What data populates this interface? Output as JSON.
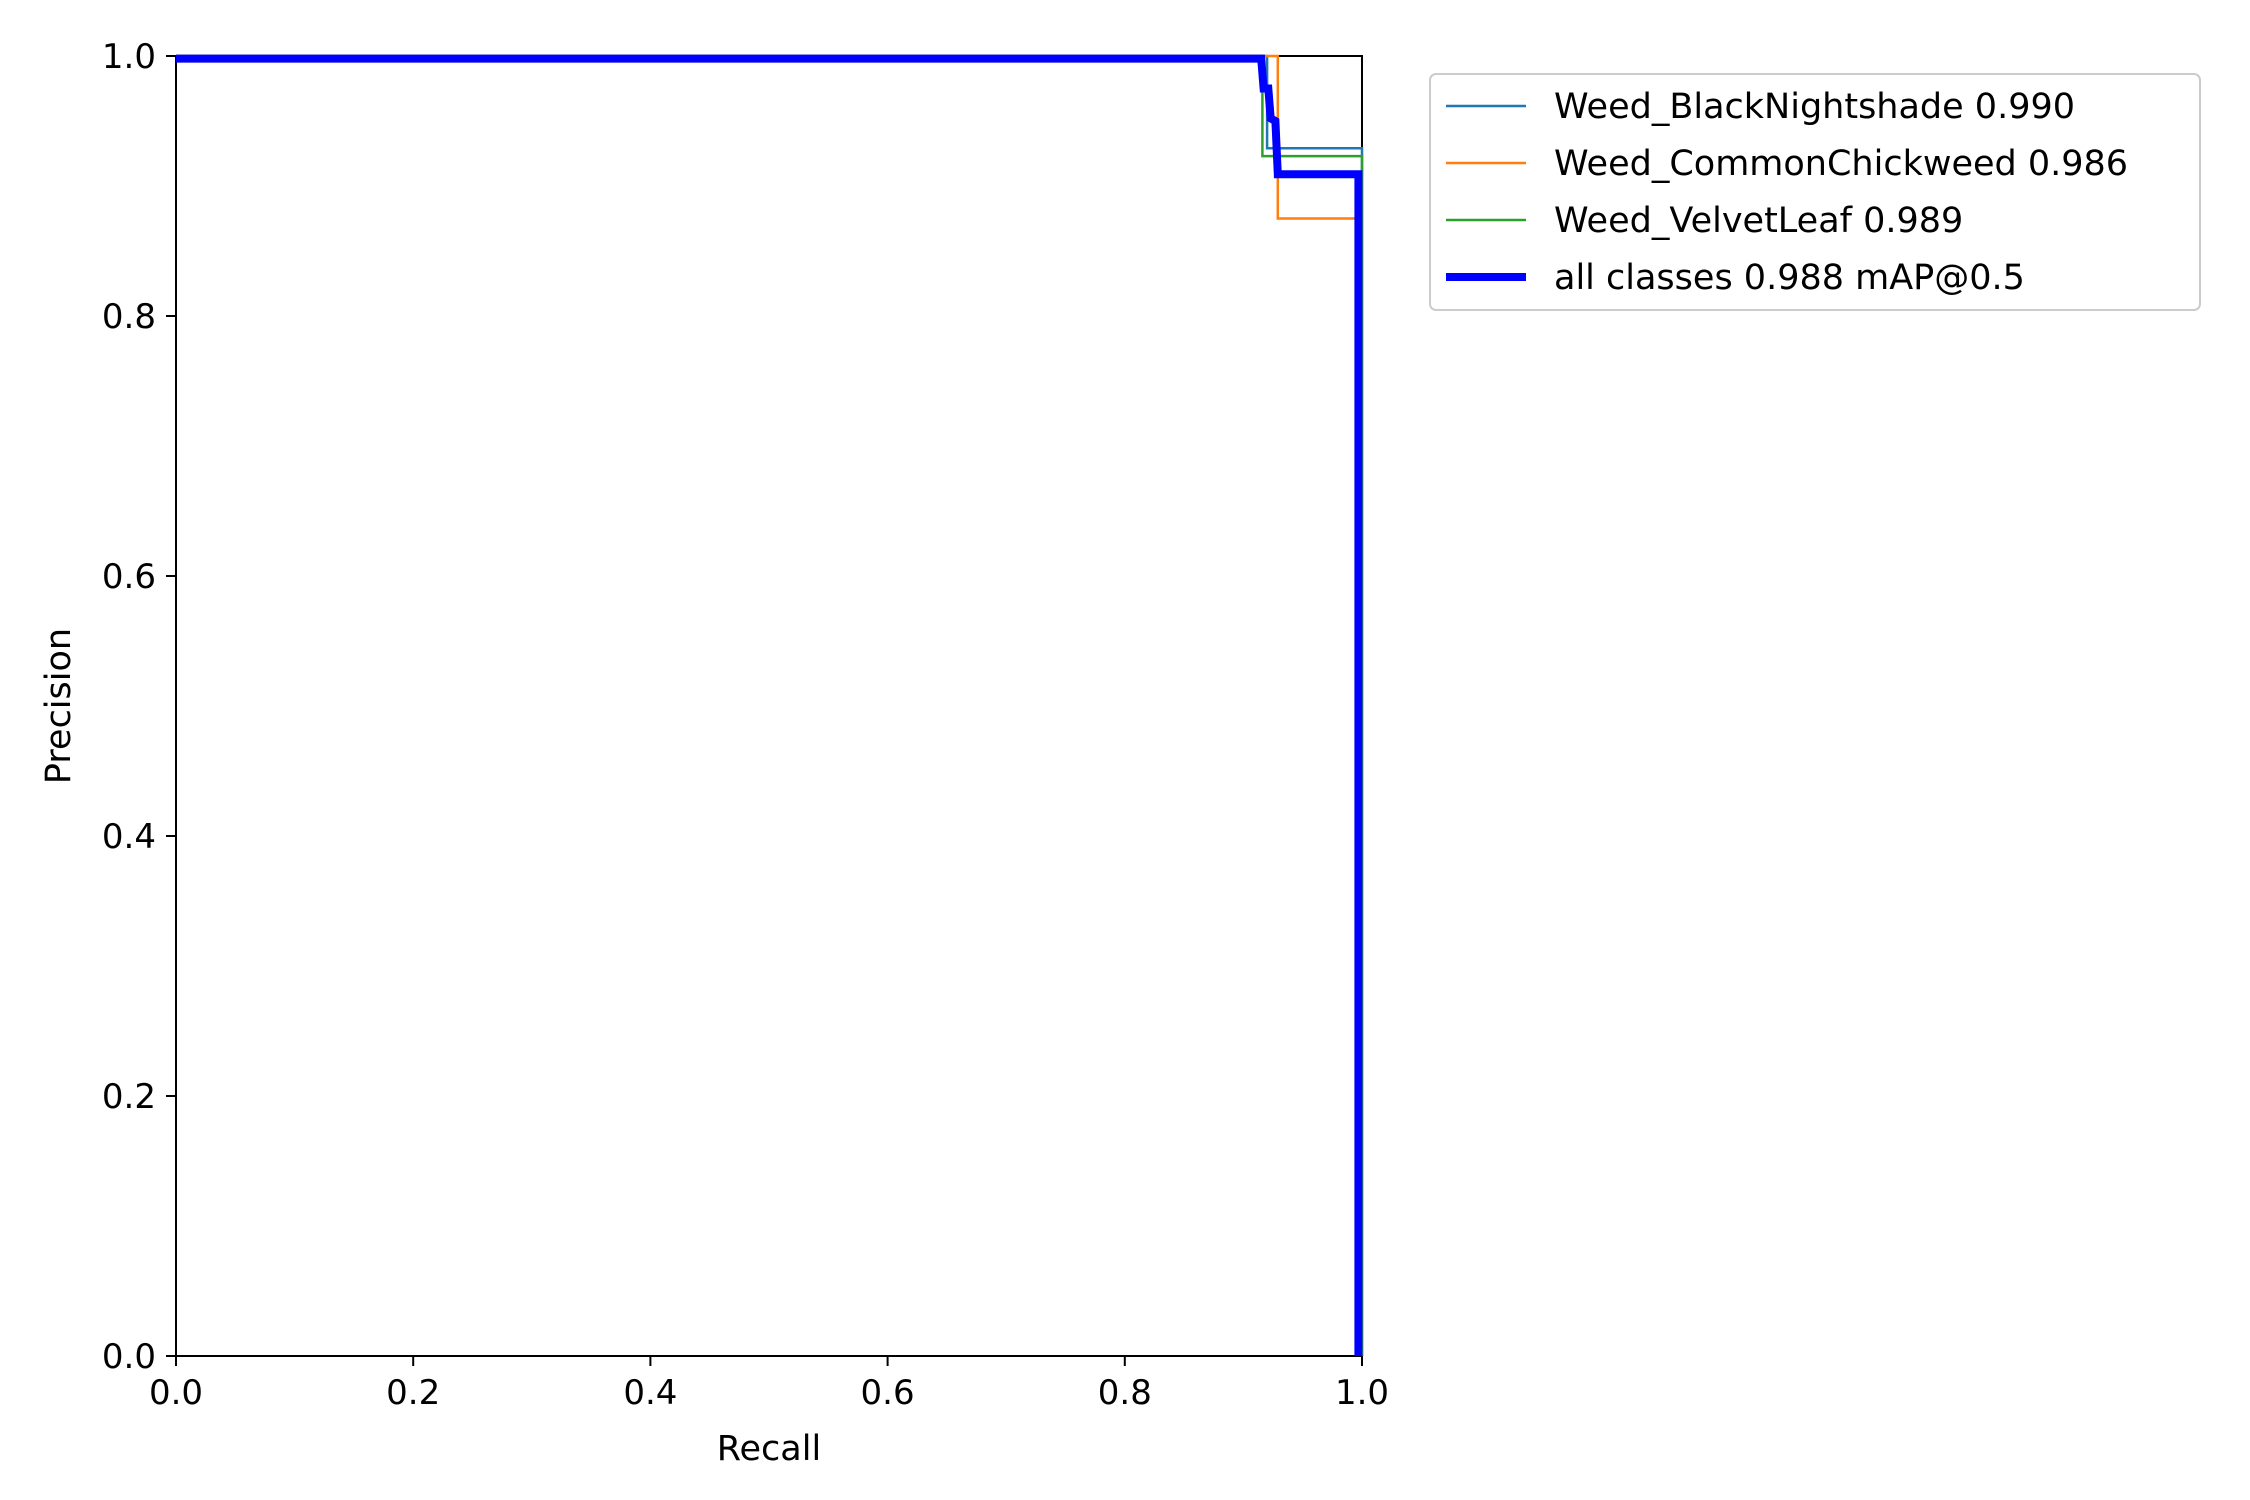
{
  "chart_data": {
    "type": "line",
    "xlabel": "Recall",
    "ylabel": "Precision",
    "xlim": [
      0.0,
      1.0
    ],
    "ylim": [
      0.0,
      1.0
    ],
    "xticks": [
      "0.0",
      "0.2",
      "0.4",
      "0.6",
      "0.8",
      "1.0"
    ],
    "yticks": [
      "0.0",
      "0.2",
      "0.4",
      "0.6",
      "0.8",
      "1.0"
    ],
    "grid": false,
    "legend_position": "outside-top-right",
    "series": [
      {
        "name": "Weed_BlackNightshade 0.990",
        "color": "#1f77b4",
        "width": "thin",
        "points": [
          [
            0.0,
            1.0
          ],
          [
            0.92,
            1.0
          ],
          [
            0.92,
            0.929
          ],
          [
            1.0,
            0.929
          ],
          [
            1.0,
            0.0
          ]
        ]
      },
      {
        "name": "Weed_CommonChickweed 0.986",
        "color": "#ff7f0e",
        "width": "thin",
        "points": [
          [
            0.0,
            1.0
          ],
          [
            0.929,
            1.0
          ],
          [
            0.929,
            0.875
          ],
          [
            0.997,
            0.875
          ],
          [
            0.997,
            0.0
          ]
        ]
      },
      {
        "name": "Weed_VelvetLeaf 0.989",
        "color": "#2ca02c",
        "width": "thin",
        "points": [
          [
            0.0,
            1.0
          ],
          [
            0.916,
            1.0
          ],
          [
            0.916,
            0.923
          ],
          [
            1.0,
            0.923
          ],
          [
            1.0,
            0.0
          ]
        ]
      },
      {
        "name": "all classes 0.988 mAP@0.5",
        "color": "#0000ff",
        "width": "thick",
        "points": [
          [
            0.0,
            0.998
          ],
          [
            0.915,
            0.998
          ],
          [
            0.917,
            0.975
          ],
          [
            0.921,
            0.975
          ],
          [
            0.923,
            0.952
          ],
          [
            0.927,
            0.95
          ],
          [
            0.929,
            0.909
          ],
          [
            0.997,
            0.909
          ],
          [
            0.997,
            0.0
          ]
        ]
      }
    ]
  }
}
